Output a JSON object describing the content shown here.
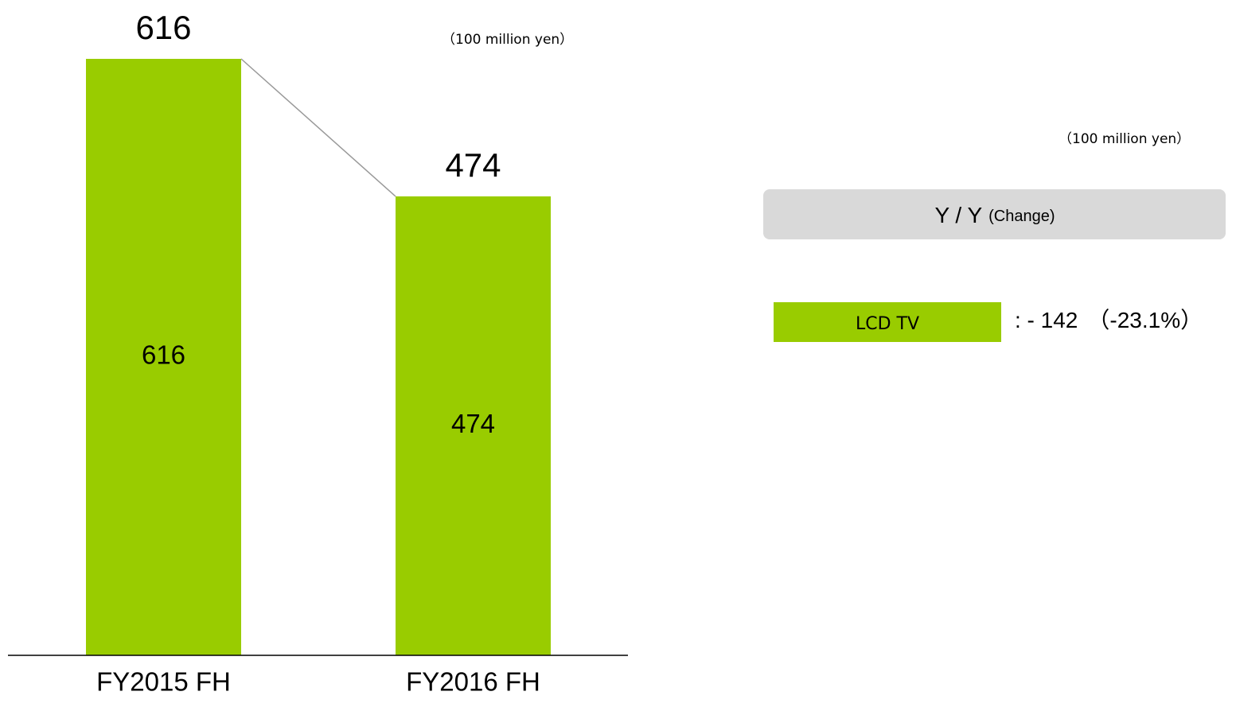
{
  "chart_data": {
    "type": "bar",
    "unit": "（100 million yen）",
    "categories": [
      "FY2015 FH",
      "FY2016 FH"
    ],
    "series": [
      {
        "name": "LCD TV",
        "color": "#99cc00",
        "values": [
          616,
          474
        ]
      }
    ]
  },
  "summary": {
    "unit": "（100 million yen）",
    "header": "Y / Y",
    "header_note": "(Change)",
    "change": ": - 142",
    "change_percent": "（-23.1%）"
  }
}
